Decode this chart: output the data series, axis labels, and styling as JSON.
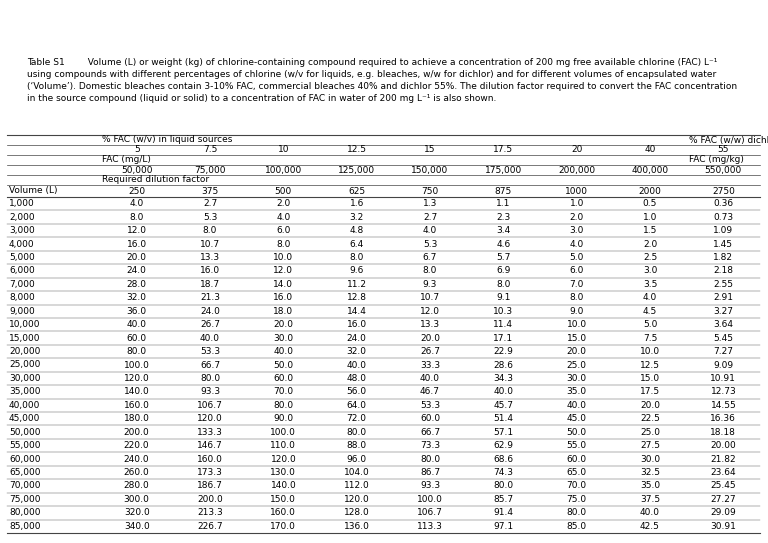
{
  "caption_line1": "Table S1        Volume (L) or weight (kg) of chlorine-containing compound required to achieve a concentration of 200 mg free available chlorine (FAC) L⁻¹",
  "caption_line2": "using compounds with different percentages of chlorine (w/v for liquids, e.g. bleaches, w/w for dichlor) and for different volumes of encapsulated water",
  "caption_line3": "(‘Volume’). Domestic bleaches contain 3-10% FAC, commercial bleaches 40% and dichlor 55%. The dilution factor required to convert the FAC concentration",
  "caption_line4": "in the source compound (liquid or solid) to a concentration of FAC in water of 200 mg L⁻¹ is also shown.",
  "header_row1_left": "% FAC (w/v) in liquid sources",
  "header_row1_right": "% FAC (w/w) dichlor",
  "header_row2": [
    "5",
    "7.5",
    "10",
    "12.5",
    "15",
    "17.5",
    "20",
    "40",
    "55"
  ],
  "header_row3_left": "FAC (mg/L)",
  "header_row3_right": "FAC (mg/kg)",
  "header_row4": [
    "50,000",
    "75,000",
    "100,000",
    "125,000",
    "150,000",
    "175,000",
    "200,000",
    "400,000",
    "550,000"
  ],
  "header_row5": "Required dilution factor",
  "header_row6_label": "Volume (L)",
  "header_row6": [
    "250",
    "375",
    "500",
    "625",
    "750",
    "875",
    "1000",
    "2000",
    "2750"
  ],
  "row_labels": [
    "1,000",
    "2,000",
    "3,000",
    "4,000",
    "5,000",
    "6,000",
    "7,000",
    "8,000",
    "9,000",
    "10,000",
    "15,000",
    "20,000",
    "25,000",
    "30,000",
    "35,000",
    "40,000",
    "45,000",
    "50,000",
    "55,000",
    "60,000",
    "65,000",
    "70,000",
    "75,000",
    "80,000",
    "85,000"
  ],
  "table_data": [
    [
      "4.0",
      "2.7",
      "2.0",
      "1.6",
      "1.3",
      "1.1",
      "1.0",
      "0.5",
      "0.36"
    ],
    [
      "8.0",
      "5.3",
      "4.0",
      "3.2",
      "2.7",
      "2.3",
      "2.0",
      "1.0",
      "0.73"
    ],
    [
      "12.0",
      "8.0",
      "6.0",
      "4.8",
      "4.0",
      "3.4",
      "3.0",
      "1.5",
      "1.09"
    ],
    [
      "16.0",
      "10.7",
      "8.0",
      "6.4",
      "5.3",
      "4.6",
      "4.0",
      "2.0",
      "1.45"
    ],
    [
      "20.0",
      "13.3",
      "10.0",
      "8.0",
      "6.7",
      "5.7",
      "5.0",
      "2.5",
      "1.82"
    ],
    [
      "24.0",
      "16.0",
      "12.0",
      "9.6",
      "8.0",
      "6.9",
      "6.0",
      "3.0",
      "2.18"
    ],
    [
      "28.0",
      "18.7",
      "14.0",
      "11.2",
      "9.3",
      "8.0",
      "7.0",
      "3.5",
      "2.55"
    ],
    [
      "32.0",
      "21.3",
      "16.0",
      "12.8",
      "10.7",
      "9.1",
      "8.0",
      "4.0",
      "2.91"
    ],
    [
      "36.0",
      "24.0",
      "18.0",
      "14.4",
      "12.0",
      "10.3",
      "9.0",
      "4.5",
      "3.27"
    ],
    [
      "40.0",
      "26.7",
      "20.0",
      "16.0",
      "13.3",
      "11.4",
      "10.0",
      "5.0",
      "3.64"
    ],
    [
      "60.0",
      "40.0",
      "30.0",
      "24.0",
      "20.0",
      "17.1",
      "15.0",
      "7.5",
      "5.45"
    ],
    [
      "80.0",
      "53.3",
      "40.0",
      "32.0",
      "26.7",
      "22.9",
      "20.0",
      "10.0",
      "7.27"
    ],
    [
      "100.0",
      "66.7",
      "50.0",
      "40.0",
      "33.3",
      "28.6",
      "25.0",
      "12.5",
      "9.09"
    ],
    [
      "120.0",
      "80.0",
      "60.0",
      "48.0",
      "40.0",
      "34.3",
      "30.0",
      "15.0",
      "10.91"
    ],
    [
      "140.0",
      "93.3",
      "70.0",
      "56.0",
      "46.7",
      "40.0",
      "35.0",
      "17.5",
      "12.73"
    ],
    [
      "160.0",
      "106.7",
      "80.0",
      "64.0",
      "53.3",
      "45.7",
      "40.0",
      "20.0",
      "14.55"
    ],
    [
      "180.0",
      "120.0",
      "90.0",
      "72.0",
      "60.0",
      "51.4",
      "45.0",
      "22.5",
      "16.36"
    ],
    [
      "200.0",
      "133.3",
      "100.0",
      "80.0",
      "66.7",
      "57.1",
      "50.0",
      "25.0",
      "18.18"
    ],
    [
      "220.0",
      "146.7",
      "110.0",
      "88.0",
      "73.3",
      "62.9",
      "55.0",
      "27.5",
      "20.00"
    ],
    [
      "240.0",
      "160.0",
      "120.0",
      "96.0",
      "80.0",
      "68.6",
      "60.0",
      "30.0",
      "21.82"
    ],
    [
      "260.0",
      "173.3",
      "130.0",
      "104.0",
      "86.7",
      "74.3",
      "65.0",
      "32.5",
      "23.64"
    ],
    [
      "280.0",
      "186.7",
      "140.0",
      "112.0",
      "93.3",
      "80.0",
      "70.0",
      "35.0",
      "25.45"
    ],
    [
      "300.0",
      "200.0",
      "150.0",
      "120.0",
      "100.0",
      "85.7",
      "75.0",
      "37.5",
      "27.27"
    ],
    [
      "320.0",
      "213.3",
      "160.0",
      "128.0",
      "106.7",
      "91.4",
      "80.0",
      "40.0",
      "29.09"
    ],
    [
      "340.0",
      "226.7",
      "170.0",
      "136.0",
      "113.3",
      "97.1",
      "85.0",
      "42.5",
      "30.91"
    ]
  ],
  "bg_color": "white",
  "text_color": "black",
  "line_color": "#444444",
  "caption_fontsize": 6.5,
  "table_fontsize": 6.5
}
